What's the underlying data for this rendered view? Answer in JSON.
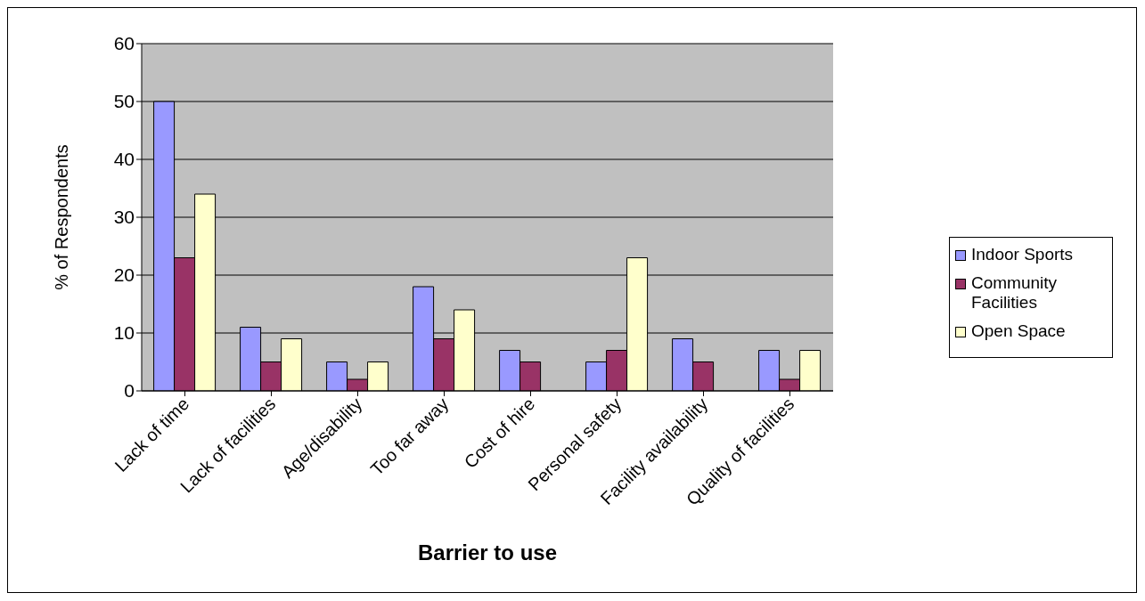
{
  "chart_data": {
    "type": "bar",
    "xlabel": "Barrier to use",
    "ylabel": "% of Respondents",
    "categories": [
      "Lack of time",
      "Lack of facilities",
      "Age/disability",
      "Too far away",
      "Cost of hire",
      "Personal safety",
      "Facility availability",
      "Quality of facilities"
    ],
    "series": [
      {
        "name": "Indoor Sports",
        "color": "#9999ff",
        "values": [
          50,
          11,
          5,
          18,
          7,
          5,
          9,
          7
        ]
      },
      {
        "name": "Community Facilities",
        "color": "#993366",
        "values": [
          23,
          5,
          2,
          9,
          5,
          7,
          5,
          2
        ]
      },
      {
        "name": "Open Space",
        "color": "#ffffcc",
        "values": [
          34,
          9,
          5,
          14,
          null,
          23,
          null,
          7
        ]
      }
    ],
    "ylim": [
      0,
      60
    ],
    "yticks": [
      0,
      10,
      20,
      30,
      40,
      50,
      60
    ],
    "grid": "y",
    "legend": "right"
  }
}
